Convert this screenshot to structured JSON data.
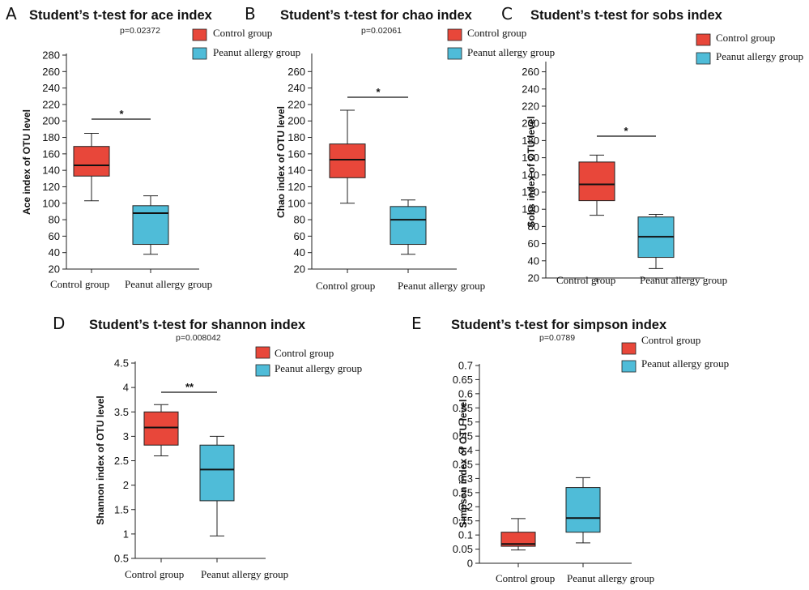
{
  "colors": {
    "control": "#E8473A",
    "peanut": "#4FBCD8",
    "stroke": "#222222"
  },
  "chart_data": [
    {
      "panel": "A",
      "type": "boxplot",
      "title": "Student’s t-test for ace index",
      "p_value": "p=0.02372",
      "ylabel": "Ace index of OTU level",
      "ylim": [
        20,
        280
      ],
      "yticks": [
        20,
        40,
        60,
        80,
        100,
        120,
        140,
        160,
        180,
        200,
        220,
        240,
        260,
        280
      ],
      "categories": [
        "Control group",
        "Peanut allergy group"
      ],
      "legend": [
        "Control group",
        "Peanut allergy group"
      ],
      "boxes": [
        {
          "min": 103,
          "q1": 133,
          "median": 146,
          "q3": 169,
          "max": 185
        },
        {
          "min": 38,
          "q1": 50,
          "median": 88,
          "q3": 97,
          "max": 109
        }
      ],
      "significance": "*"
    },
    {
      "panel": "B",
      "type": "boxplot",
      "title": "Student’s t-test for chao index",
      "p_value": "p=0.02061",
      "ylabel": "Chao index of OTU level",
      "ylim": [
        20,
        280
      ],
      "yticks": [
        20,
        40,
        60,
        80,
        100,
        120,
        140,
        160,
        180,
        200,
        220,
        240,
        260
      ],
      "categories": [
        "Control group",
        "Peanut allergy group"
      ],
      "legend": [
        "Control group",
        "Peanut allergy group"
      ],
      "boxes": [
        {
          "min": 100,
          "q1": 131,
          "median": 153,
          "q3": 172,
          "max": 213
        },
        {
          "min": 38,
          "q1": 50,
          "median": 80,
          "q3": 96,
          "max": 104
        }
      ],
      "significance": "*"
    },
    {
      "panel": "C",
      "type": "boxplot",
      "title": "Student’s t-test for sobs index",
      "p_value": "",
      "ylabel": "Sobs index of OTU level",
      "ylim": [
        20,
        270
      ],
      "yticks": [
        20,
        40,
        60,
        80,
        100,
        120,
        140,
        160,
        180,
        200,
        220,
        240,
        260
      ],
      "categories": [
        "Control  group",
        "Peanut allergy group"
      ],
      "legend": [
        "Control group",
        "Peanut allergy group"
      ],
      "boxes": [
        {
          "min": 93,
          "q1": 110,
          "median": 129,
          "q3": 155,
          "max": 163
        },
        {
          "min": 31,
          "q1": 44,
          "median": 68,
          "q3": 91,
          "max": 94
        }
      ],
      "significance": "*"
    },
    {
      "panel": "D",
      "type": "boxplot",
      "title": "Student’s t-test for shannon index",
      "p_value": "p=0.008042",
      "ylabel": "Shannon index of OTU level",
      "ylim": [
        0.5,
        4.5
      ],
      "yticks": [
        0.5,
        1,
        1.5,
        2,
        2.5,
        3,
        3.5,
        4,
        4.5
      ],
      "categories": [
        "Control group",
        "Peanut allergy group"
      ],
      "legend": [
        "Control group",
        "Peanut allergy group"
      ],
      "boxes": [
        {
          "min": 2.6,
          "q1": 2.82,
          "median": 3.18,
          "q3": 3.5,
          "max": 3.65
        },
        {
          "min": 0.96,
          "q1": 1.68,
          "median": 2.32,
          "q3": 2.82,
          "max": 3.0
        }
      ],
      "significance": "**"
    },
    {
      "panel": "E",
      "type": "boxplot",
      "title": "Student’s t-test for simpson index",
      "p_value": "p=0.0789",
      "ylabel": "Simpson index of OTU level",
      "ylim": [
        0,
        0.7
      ],
      "yticks": [
        0,
        0.05,
        0.1,
        0.15,
        0.2,
        0.25,
        0.3,
        0.35,
        0.4,
        0.45,
        0.5,
        0.55,
        0.6,
        0.65,
        0.7
      ],
      "categories": [
        "Control group",
        "Peanut allergy group"
      ],
      "legend": [
        "Control group",
        "Peanut allergy group"
      ],
      "boxes": [
        {
          "min": 0.047,
          "q1": 0.06,
          "median": 0.068,
          "q3": 0.11,
          "max": 0.158
        },
        {
          "min": 0.072,
          "q1": 0.11,
          "median": 0.16,
          "q3": 0.268,
          "max": 0.303
        }
      ],
      "significance": ""
    }
  ]
}
